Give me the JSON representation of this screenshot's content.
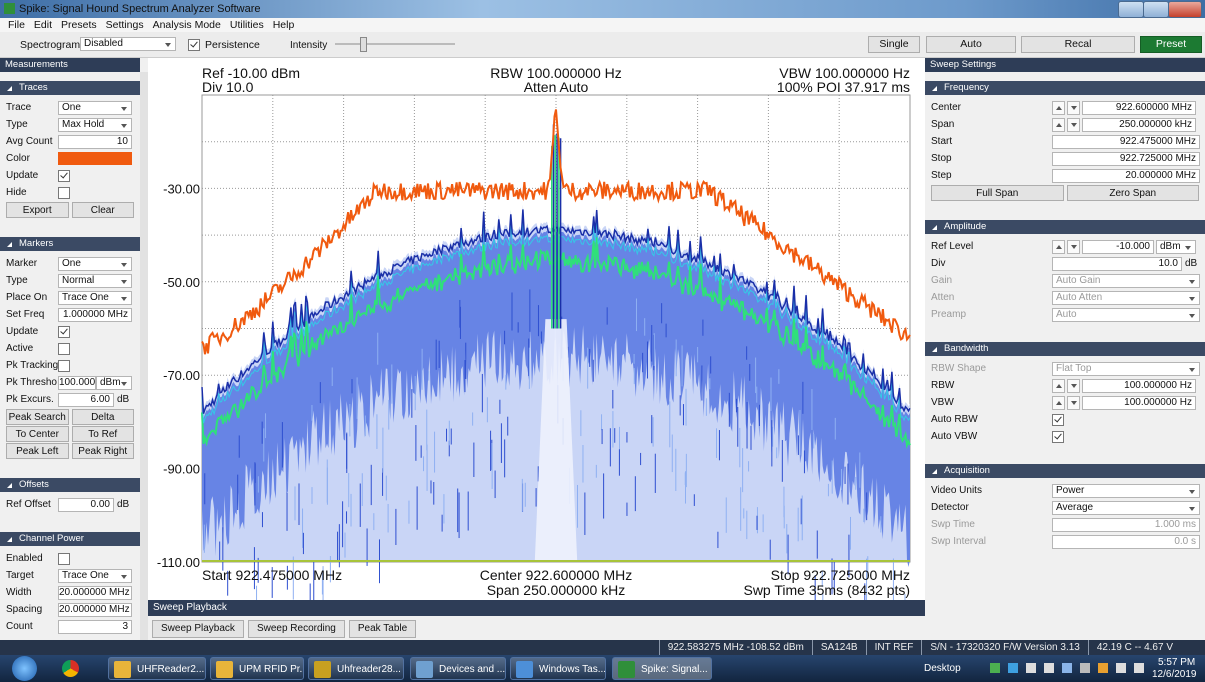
{
  "window": {
    "title": "Spike: Signal Hound Spectrum Analyzer Software"
  },
  "menu": [
    "File",
    "Edit",
    "Presets",
    "Settings",
    "Analysis Mode",
    "Utilities",
    "Help"
  ],
  "toolbar": {
    "spectrogram_label": "Spectrogram",
    "spectrogram_value": "Disabled",
    "persistence": "Persistence",
    "persistence_checked": true,
    "intensity": "Intensity",
    "single": "Single",
    "auto": "Auto",
    "recal": "Recal",
    "preset": "Preset"
  },
  "measurements": {
    "title": "Measurements",
    "sections": [
      {
        "title": "Traces",
        "rows": [
          {
            "label": "Trace",
            "value": "One",
            "kind": "select"
          },
          {
            "label": "Type",
            "value": "Max Hold",
            "kind": "select"
          },
          {
            "label": "Avg Count",
            "value": "10",
            "kind": "input"
          },
          {
            "label": "Color",
            "kind": "color",
            "color": "#f05a0f"
          },
          {
            "label": "Update",
            "kind": "check",
            "checked": true
          },
          {
            "label": "Hide",
            "kind": "check",
            "checked": false
          }
        ],
        "buttons": [
          "Export",
          "Clear"
        ]
      },
      {
        "title": "Markers",
        "rows": [
          {
            "label": "Marker",
            "value": "One",
            "kind": "select"
          },
          {
            "label": "Type",
            "value": "Normal",
            "kind": "select"
          },
          {
            "label": "Place On",
            "value": "Trace One",
            "kind": "select"
          },
          {
            "label": "Set Freq",
            "value": "1.000000 MHz",
            "kind": "input"
          },
          {
            "label": "Update",
            "kind": "check",
            "checked": true
          },
          {
            "label": "Active",
            "kind": "check",
            "checked": false
          },
          {
            "label": "Pk Tracking",
            "kind": "check",
            "checked": false
          },
          {
            "label": "Pk Thresho",
            "value": "100.000",
            "unit": "dBm",
            "kind": "input-select"
          },
          {
            "label": "Pk Excurs.",
            "value": "6.00",
            "unit": "dB",
            "kind": "input-unit"
          }
        ],
        "buttons": [
          "Peak Search",
          "Delta",
          "To Center",
          "To Ref",
          "Peak Left",
          "Peak Right"
        ]
      },
      {
        "title": "Offsets",
        "rows": [
          {
            "label": "Ref Offset",
            "value": "0.00",
            "unit": "dB",
            "kind": "input-unit"
          }
        ]
      },
      {
        "title": "Channel Power",
        "rows": [
          {
            "label": "Enabled",
            "kind": "check",
            "checked": false
          },
          {
            "label": "Target",
            "value": "Trace One",
            "kind": "select"
          },
          {
            "label": "Width",
            "value": "20.000000 MHz",
            "kind": "input"
          },
          {
            "label": "Spacing",
            "value": "20.000000 MHz",
            "kind": "input"
          },
          {
            "label": "Count",
            "value": "3",
            "kind": "input"
          }
        ]
      }
    ]
  },
  "plot": {
    "ref": "Ref -10.00 dBm",
    "div": "Div 10.0",
    "rbw": "RBW 100.000000 Hz",
    "atten": "Atten Auto",
    "vbw": "VBW 100.000000 Hz",
    "poi": "100% POI 37.917 ms",
    "y_labels": [
      "-30.00",
      "-50.00",
      "-70.00",
      "-90.00",
      "-110.00"
    ],
    "start": "Start 922.475000 MHz",
    "center": "Center 922.600000 MHz",
    "span": "Span 250.000000 kHz",
    "stop": "Stop 922.725000 MHz",
    "swp_time": "Swp Time 35ms (8432 pts)"
  },
  "playback": {
    "title": "Sweep Playback",
    "tabs": [
      "Sweep Playback",
      "Sweep Recording",
      "Peak Table"
    ]
  },
  "sweep_settings": {
    "title": "Sweep Settings",
    "sections": [
      {
        "title": "Frequency",
        "rows": [
          {
            "label": "Center",
            "value": "922.600000 MHz",
            "kind": "spin"
          },
          {
            "label": "Span",
            "value": "250.000000 kHz",
            "kind": "spin"
          },
          {
            "label": "Start",
            "value": "922.475000 MHz",
            "kind": "input"
          },
          {
            "label": "Stop",
            "value": "922.725000 MHz",
            "kind": "input"
          },
          {
            "label": "Step",
            "value": "20.000000 MHz",
            "kind": "input"
          }
        ],
        "buttons": [
          "Full Span",
          "Zero Span"
        ]
      },
      {
        "title": "Amplitude",
        "rows": [
          {
            "label": "Ref Level",
            "value": "-10.000",
            "unit": "dBm",
            "kind": "spin-select"
          },
          {
            "label": "Div",
            "value": "10.0",
            "unit": "dB",
            "kind": "input-unit"
          },
          {
            "label": "Gain",
            "value": "Auto Gain",
            "kind": "select",
            "disabled": true
          },
          {
            "label": "Atten",
            "value": "Auto Atten",
            "kind": "select",
            "disabled": true
          },
          {
            "label": "Preamp",
            "value": "Auto",
            "kind": "select",
            "disabled": true
          }
        ]
      },
      {
        "title": "Bandwidth",
        "rows": [
          {
            "label": "RBW Shape",
            "value": "Flat Top",
            "kind": "select",
            "disabled": true
          },
          {
            "label": "RBW",
            "value": "100.000000 Hz",
            "kind": "spin"
          },
          {
            "label": "VBW",
            "value": "100.000000 Hz",
            "kind": "spin"
          },
          {
            "label": "Auto RBW",
            "kind": "check",
            "checked": true
          },
          {
            "label": "Auto VBW",
            "kind": "check",
            "checked": true
          }
        ]
      },
      {
        "title": "Acquisition",
        "rows": [
          {
            "label": "Video Units",
            "value": "Power",
            "kind": "select"
          },
          {
            "label": "Detector",
            "value": "Average",
            "kind": "select"
          },
          {
            "label": "Swp Time",
            "value": "1.000 ms",
            "kind": "input",
            "disabled": true
          },
          {
            "label": "Swp Interval",
            "value": "0.0 s",
            "kind": "input",
            "disabled": true
          }
        ]
      }
    ]
  },
  "status": [
    "922.583275 MHz -108.52 dBm",
    "SA124B",
    "INT REF",
    "S/N - 17320320  F/W Version 3.13",
    "42.19 C -- 4.67 V"
  ],
  "taskbar": {
    "items": [
      "UHFReader2...",
      "UPM RFID Pr...",
      "Uhfreader28...",
      "Devices and ...",
      "Windows Tas...",
      "Spike: Signal..."
    ],
    "desktop": "Desktop",
    "time": "5:57 PM",
    "date": "12/6/2019"
  }
}
